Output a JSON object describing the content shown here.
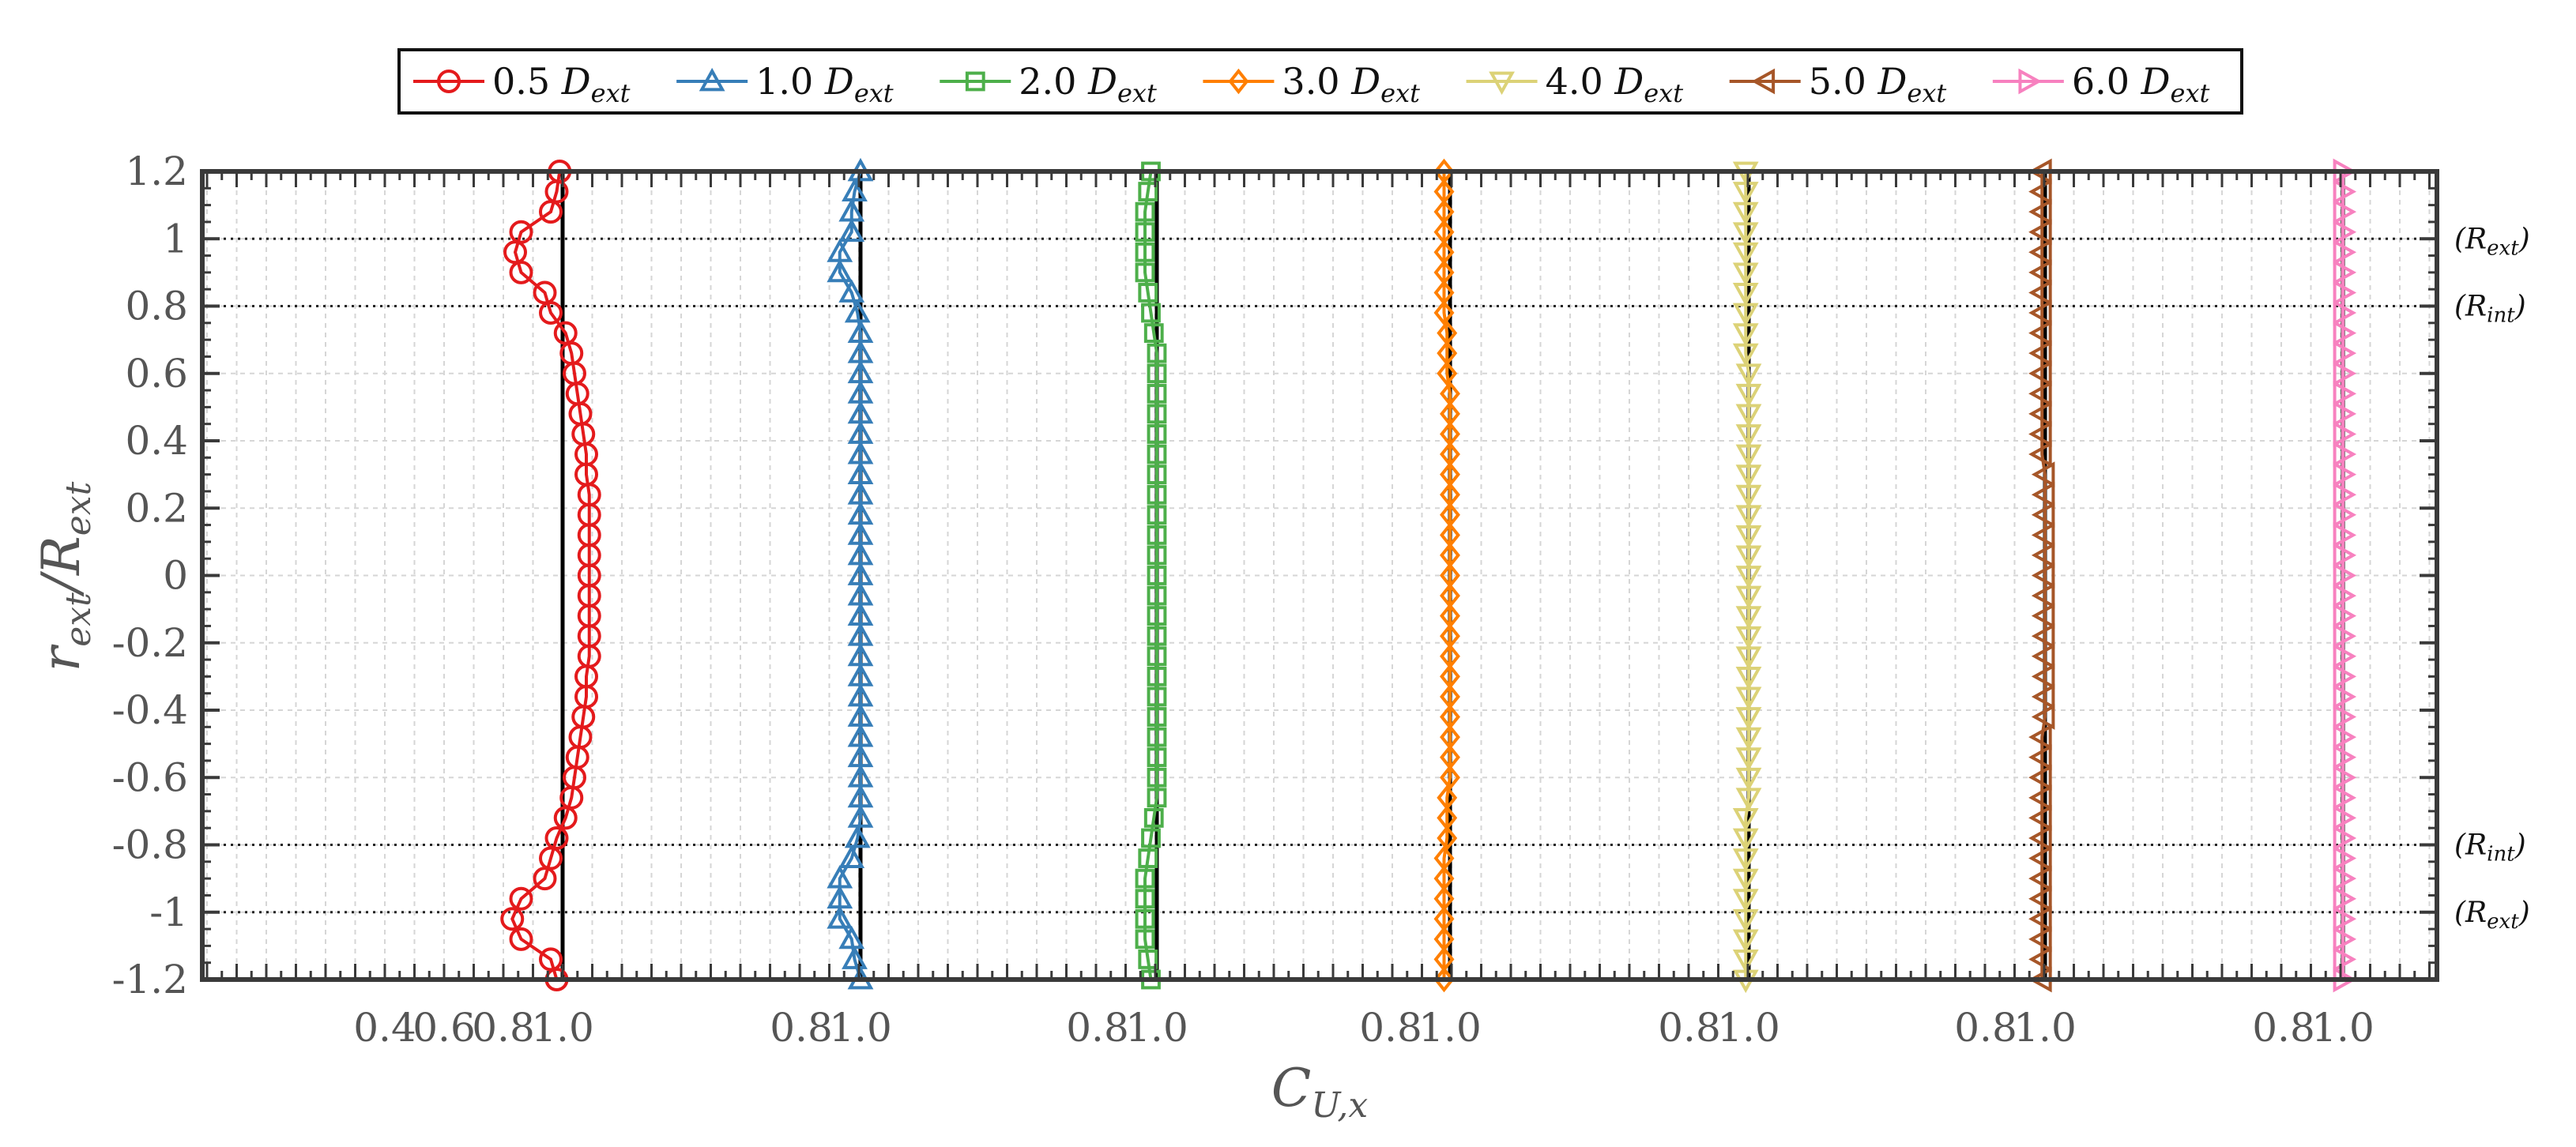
{
  "chart_data": {
    "type": "line",
    "title": "",
    "xlabel": "C_U,x",
    "ylabel": "r_ext/R_ext",
    "ylim": [
      -1.2,
      1.2
    ],
    "y_ticks": [
      "1.2",
      "1",
      "0.8",
      "0.6",
      "0.4",
      "0.2",
      "0",
      "-0.2",
      "-0.4",
      "-0.6",
      "-0.8",
      "-1",
      "-1.2"
    ],
    "legend_position": "top-center",
    "grid": true,
    "reference_lines": [
      {
        "y": 1.0,
        "label": "(R_ext)"
      },
      {
        "y": 0.8,
        "label": "(R_int)"
      },
      {
        "y": -0.8,
        "label": "(R_int)"
      },
      {
        "y": -1.0,
        "label": "(R_ext)"
      }
    ],
    "y": [
      1.2,
      1.14,
      1.08,
      1.02,
      0.96,
      0.9,
      0.84,
      0.78,
      0.72,
      0.66,
      0.6,
      0.54,
      0.48,
      0.42,
      0.36,
      0.3,
      0.24,
      0.18,
      0.12,
      0.06,
      0.0,
      -0.06,
      -0.12,
      -0.18,
      -0.24,
      -0.3,
      -0.36,
      -0.42,
      -0.48,
      -0.54,
      -0.6,
      -0.66,
      -0.72,
      -0.78,
      -0.84,
      -0.9,
      -0.96,
      -1.02,
      -1.08,
      -1.14,
      -1.2
    ],
    "series": [
      {
        "name": "0.5 D_ext",
        "color": "#e41a1c",
        "marker": "circle",
        "x_ticks": [
          "0.4",
          "0.6",
          "0.8",
          "1.0"
        ],
        "xlim": [
          0.33,
          1.22
        ],
        "values": [
          0.99,
          0.98,
          0.96,
          0.86,
          0.84,
          0.86,
          0.94,
          0.96,
          1.01,
          1.03,
          1.04,
          1.05,
          1.06,
          1.07,
          1.08,
          1.08,
          1.09,
          1.09,
          1.09,
          1.09,
          1.09,
          1.09,
          1.09,
          1.09,
          1.09,
          1.08,
          1.08,
          1.07,
          1.06,
          1.05,
          1.04,
          1.03,
          1.01,
          0.98,
          0.96,
          0.94,
          0.86,
          0.83,
          0.86,
          0.96,
          0.98
        ]
      },
      {
        "name": "1.0 D_ext",
        "color": "#377eb8",
        "marker": "triangle-up",
        "x_ticks": [
          "0.8",
          "1.0"
        ],
        "xlim": [
          0.63,
          1.22
        ],
        "values": [
          1.0,
          0.98,
          0.97,
          0.97,
          0.93,
          0.93,
          0.97,
          0.99,
          1.0,
          1.0,
          1.0,
          1.0,
          1.0,
          1.0,
          1.0,
          1.0,
          1.0,
          1.0,
          1.0,
          1.0,
          1.0,
          1.0,
          1.0,
          1.0,
          1.0,
          1.0,
          1.0,
          1.0,
          1.0,
          1.0,
          1.0,
          1.0,
          1.0,
          0.99,
          0.97,
          0.93,
          0.93,
          0.93,
          0.97,
          0.98,
          1.0
        ]
      },
      {
        "name": "2.0 D_ext",
        "color": "#4daf4a",
        "marker": "square",
        "x_ticks": [
          "0.8",
          "1.0"
        ],
        "xlim": [
          0.63,
          1.22
        ],
        "values": [
          0.98,
          0.97,
          0.96,
          0.96,
          0.96,
          0.96,
          0.97,
          0.98,
          0.99,
          1.0,
          1.0,
          1.0,
          1.0,
          1.0,
          1.0,
          1.0,
          1.0,
          1.0,
          1.0,
          1.0,
          1.0,
          1.0,
          1.0,
          1.0,
          1.0,
          1.0,
          1.0,
          1.0,
          1.0,
          1.0,
          1.0,
          1.0,
          0.99,
          0.98,
          0.97,
          0.96,
          0.96,
          0.96,
          0.96,
          0.97,
          0.98
        ]
      },
      {
        "name": "3.0 D_ext",
        "color": "#ff7f00",
        "marker": "diamond",
        "x_ticks": [
          "0.8",
          "1.0"
        ],
        "xlim": [
          0.63,
          1.22
        ],
        "values": [
          0.98,
          0.98,
          0.98,
          0.98,
          0.98,
          0.98,
          0.98,
          0.98,
          0.99,
          0.99,
          0.99,
          1.0,
          1.0,
          1.0,
          1.0,
          1.0,
          1.0,
          1.0,
          1.0,
          1.0,
          1.0,
          1.0,
          1.0,
          1.0,
          1.0,
          1.0,
          1.0,
          1.0,
          1.0,
          1.0,
          1.0,
          0.99,
          0.99,
          0.99,
          0.98,
          0.98,
          0.98,
          0.98,
          0.98,
          0.98,
          0.98
        ]
      },
      {
        "name": "4.0 D_ext",
        "color": "#dcd277",
        "marker": "triangle-down",
        "x_ticks": [
          "0.8",
          "1.0"
        ],
        "xlim": [
          0.63,
          1.22
        ],
        "values": [
          0.99,
          0.99,
          0.99,
          0.99,
          0.99,
          0.99,
          0.99,
          0.99,
          0.99,
          0.99,
          1.0,
          1.0,
          1.0,
          1.0,
          1.0,
          1.0,
          1.0,
          1.0,
          1.0,
          1.0,
          1.0,
          1.0,
          1.0,
          1.0,
          1.0,
          1.0,
          1.0,
          1.0,
          1.0,
          1.0,
          1.0,
          1.0,
          0.99,
          0.99,
          0.99,
          0.99,
          0.99,
          0.99,
          0.99,
          0.99,
          0.99
        ]
      },
      {
        "name": "5.0 D_ext",
        "color": "#a65628",
        "marker": "triangle-left",
        "x_ticks": [
          "0.8",
          "1.0"
        ],
        "xlim": [
          0.63,
          1.22
        ],
        "values": [
          0.99,
          0.99,
          0.99,
          0.99,
          0.99,
          0.99,
          0.99,
          0.99,
          0.99,
          0.99,
          0.99,
          0.99,
          0.99,
          0.99,
          0.99,
          1.0,
          1.0,
          1.0,
          1.0,
          1.0,
          1.0,
          1.0,
          1.0,
          1.0,
          1.0,
          1.0,
          1.0,
          1.0,
          0.99,
          0.99,
          0.99,
          0.99,
          0.99,
          0.99,
          0.99,
          0.99,
          0.99,
          0.99,
          0.99,
          0.99,
          0.99
        ]
      },
      {
        "name": "6.0 D_ext",
        "color": "#f781bf",
        "marker": "triangle-right",
        "x_ticks": [
          "0.8",
          "1.0"
        ],
        "xlim": [
          0.63,
          1.22
        ],
        "values": [
          1.0,
          1.0,
          1.0,
          1.0,
          1.0,
          1.0,
          1.0,
          1.0,
          1.0,
          1.0,
          1.0,
          1.0,
          1.0,
          1.0,
          1.0,
          1.0,
          1.0,
          1.0,
          1.0,
          1.0,
          1.0,
          1.0,
          1.0,
          1.0,
          1.0,
          1.0,
          1.0,
          1.0,
          1.0,
          1.0,
          1.0,
          1.0,
          1.0,
          1.0,
          1.0,
          1.0,
          1.0,
          1.0,
          1.0,
          1.0,
          1.0
        ]
      }
    ]
  }
}
